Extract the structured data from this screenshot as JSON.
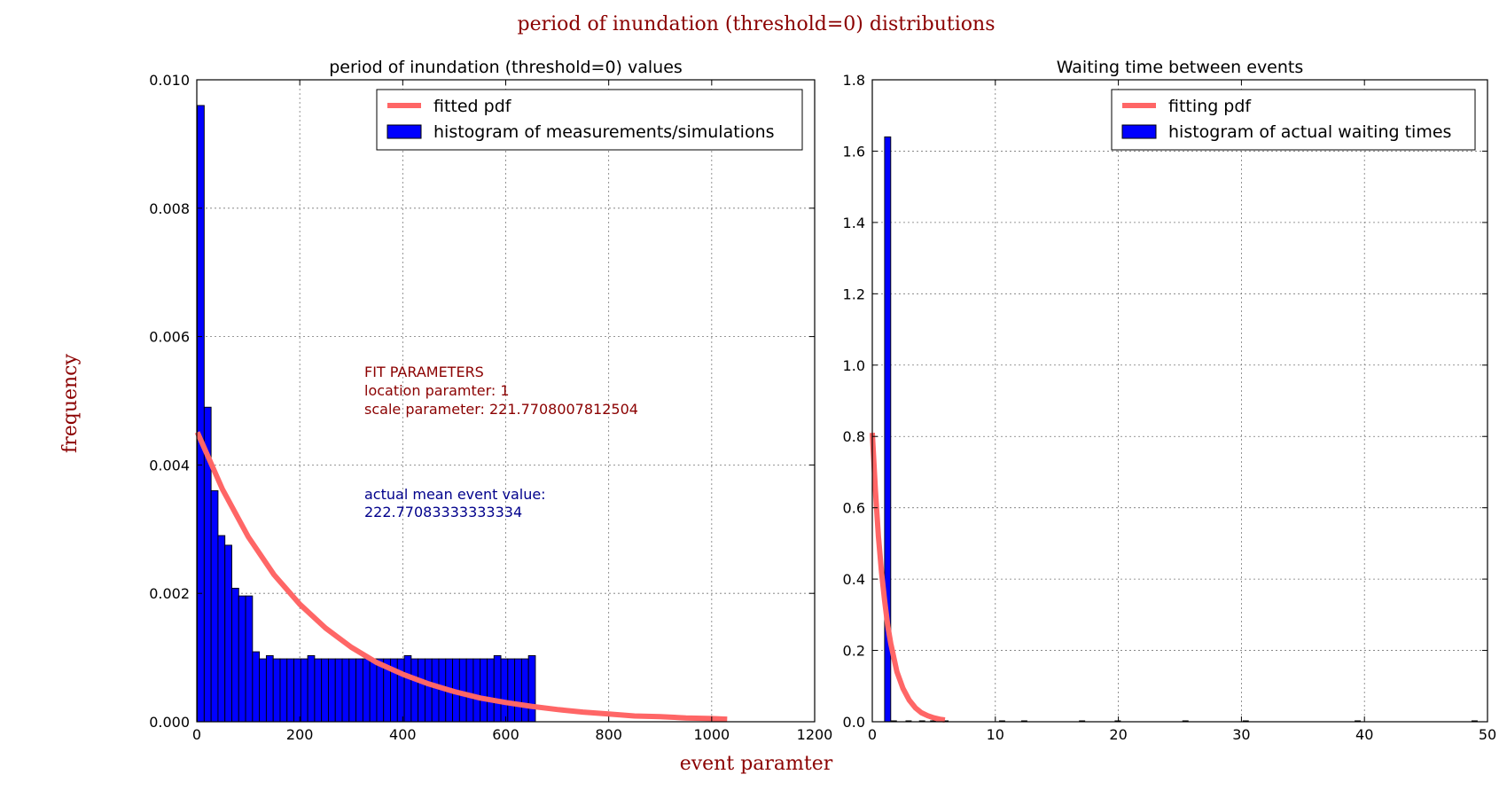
{
  "figure": {
    "title": "period of inundation (threshold=0) distributions",
    "xlabel": "event paramter",
    "ylabel": "frequency"
  },
  "chart_data": [
    {
      "type": "bar",
      "title": "period of inundation (threshold=0) values",
      "xlim": [
        0,
        1200
      ],
      "ylim": [
        0,
        0.01
      ],
      "xticks": [
        "0",
        "200",
        "400",
        "600",
        "800",
        "1000",
        "1200"
      ],
      "yticks": [
        "0.000",
        "0.002",
        "0.004",
        "0.006",
        "0.008",
        "0.010"
      ],
      "grid": true,
      "legend_placement": "top-right",
      "series": [
        {
          "name": "fitted pdf",
          "kind": "line",
          "color": "#ff6666",
          "x": [
            1,
            50,
            100,
            150,
            200,
            250,
            300,
            350,
            400,
            450,
            500,
            550,
            600,
            650,
            700,
            750,
            800,
            850,
            900,
            950,
            1000,
            1030
          ],
          "y": [
            0.00451,
            0.00362,
            0.00288,
            0.00229,
            0.00183,
            0.00146,
            0.00116,
            0.00092,
            0.00074,
            0.00059,
            0.00047,
            0.00037,
            0.0003,
            0.00024,
            0.00019,
            0.00015,
            0.00012,
            9e-05,
            8e-05,
            6e-05,
            5e-05,
            4e-05
          ]
        },
        {
          "name": "histogram of measurements/simulations",
          "kind": "histogram",
          "color": "#0000ff",
          "bin_start": 1,
          "bin_width": 13.4,
          "values": [
            0.0096,
            0.0049,
            0.0036,
            0.0029,
            0.00275,
            0.00208,
            0.00196,
            0.00196,
            0.00109,
            0.00098,
            0.00103,
            0.00098,
            0.00098,
            0.00098,
            0.00098,
            0.00098,
            0.00103,
            0.00098,
            0.00098,
            0.00098,
            0.00098,
            0.00098,
            0.00098,
            0.00098,
            0.00098,
            0.00098,
            0.00098,
            0.00098,
            0.00098,
            0.00098,
            0.00103,
            0.00098,
            0.00098,
            0.00098,
            0.00098,
            0.00098,
            0.00098,
            0.00098,
            0.00098,
            0.00098,
            0.00098,
            0.00098,
            0.00098,
            0.00103,
            0.00098,
            0.00098,
            0.00098,
            0.00098,
            0.00103
          ]
        }
      ],
      "annotations": {
        "fit_title": "FIT PARAMETERS",
        "fit_location": "location paramter: 1",
        "fit_scale": "scale parameter: 221.7708007812504",
        "mean_label": "actual mean event value:",
        "mean_value": "222.77083333333334"
      }
    },
    {
      "type": "bar",
      "title": "Waiting time between events",
      "xlim": [
        0,
        50
      ],
      "ylim": [
        0,
        1.8
      ],
      "xticks": [
        "0",
        "10",
        "20",
        "30",
        "40",
        "50"
      ],
      "yticks": [
        "0.0",
        "0.2",
        "0.4",
        "0.6",
        "0.8",
        "1.0",
        "1.2",
        "1.4",
        "1.6",
        "1.8"
      ],
      "grid": true,
      "legend_placement": "top-right",
      "series": [
        {
          "name": "fitting pdf",
          "kind": "line",
          "color": "#ff6666",
          "x": [
            0,
            0.25,
            0.5,
            0.75,
            1,
            1.25,
            1.5,
            1.75,
            2,
            2.5,
            3,
            3.5,
            4,
            4.5,
            5,
            5.5,
            5.9
          ],
          "y": [
            0.81,
            0.65,
            0.52,
            0.42,
            0.34,
            0.27,
            0.22,
            0.18,
            0.14,
            0.093,
            0.061,
            0.039,
            0.025,
            0.017,
            0.011,
            0.007,
            0.005
          ]
        },
        {
          "name": "histogram of actual waiting times",
          "kind": "histogram",
          "color": "#0000ff",
          "bin_start": 1,
          "bin_width": 0.5,
          "values": [
            1.64
          ]
        }
      ],
      "empty_bins_x": [
        1.5,
        2.7,
        3.8,
        4.7,
        5.7,
        10.3,
        12.1,
        16.8,
        19.7,
        25.2,
        30.1,
        39.2,
        48.7
      ]
    }
  ]
}
